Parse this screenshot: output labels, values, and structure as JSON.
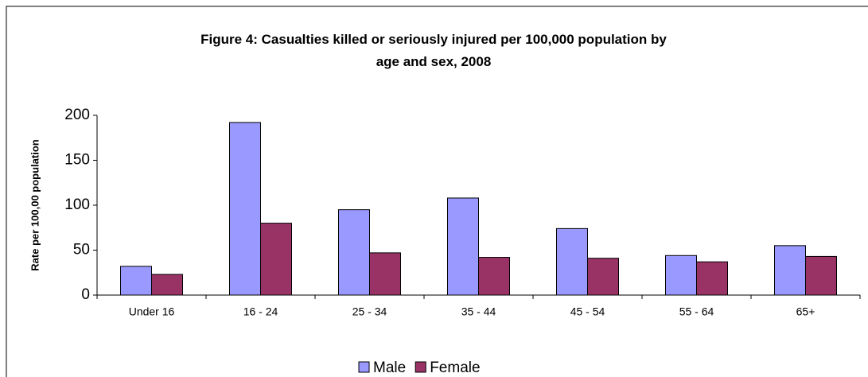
{
  "chart_data": {
    "type": "bar",
    "title": "Figure 4: Casualties killed or seriously injured per 100,000 population by age and sex, 2008",
    "ylabel": "Rate per 100,00 population",
    "categories": [
      "Under 16",
      "16 - 24",
      "25 - 34",
      "35 - 44",
      "45 - 54",
      "55 - 64",
      "65+"
    ],
    "series": [
      {
        "name": "Male",
        "color": "#9999ff",
        "values": [
          32,
          192,
          95,
          108,
          74,
          44,
          55
        ]
      },
      {
        "name": "Female",
        "color": "#993366",
        "values": [
          23,
          80,
          47,
          42,
          41,
          37,
          43
        ]
      }
    ],
    "ylim": [
      0,
      200
    ],
    "yticks": [
      0,
      50,
      100,
      150,
      200
    ],
    "grid": false,
    "legend": "bottom"
  }
}
